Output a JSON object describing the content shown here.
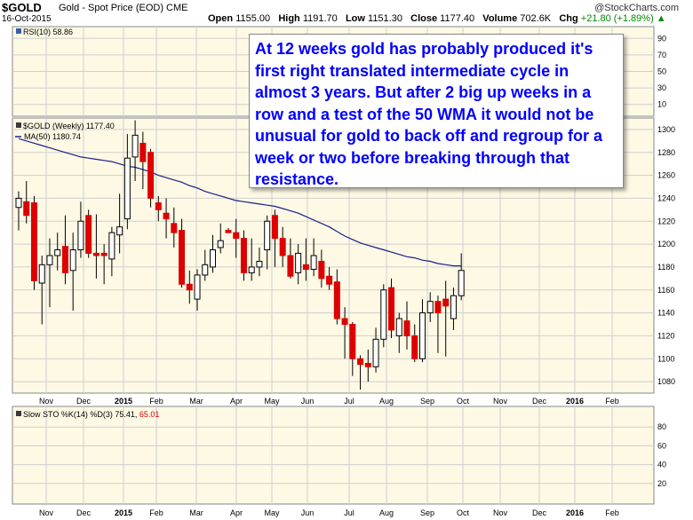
{
  "header": {
    "symbol": "$GOLD",
    "description": "Gold - Spot Price (EOD)  CME",
    "date": "16-Oct-2015",
    "open_label": "Open",
    "open": "1155.00",
    "high_label": "High",
    "high": "1191.70",
    "low_label": "Low",
    "low": "1151.30",
    "close_label": "Close",
    "close": "1177.40",
    "volume_label": "Volume",
    "volume": "702.6K",
    "chg_label": "Chg",
    "chg": "+21.80 (+1.89%)",
    "chg_arrow": "▲",
    "logo": "@StockCharts.com"
  },
  "annotation": "At 12 weeks gold has probably produced it's first right translated intermediate cycle in almost 3 years. But after 2 big up weeks in a row and a test of the 50 WMA it would not be unusual for gold to back off and regroup for a week or two before breaking through that resistance.",
  "colors": {
    "panel_bg": "#fdf9e4",
    "up": "#ffffff",
    "down": "#dd0000",
    "ma": "#1c1c8c",
    "grid": "#cfcfcf",
    "chg": "#008800"
  },
  "chart_data": [
    {
      "type": "line",
      "title": "RSI(10) 58.86",
      "ylim": [
        0,
        100
      ],
      "yticks": [
        10,
        30,
        50,
        70,
        90
      ]
    },
    {
      "type": "candlestick",
      "legend": [
        "$GOLD (Weekly) 1177.40",
        "MA(50) 1180.74"
      ],
      "ylim": [
        1070,
        1310
      ],
      "yticks": [
        1080,
        1100,
        1120,
        1140,
        1160,
        1180,
        1200,
        1220,
        1240,
        1260,
        1280,
        1300
      ],
      "x_months": [
        "Nov",
        "Dec",
        "2015",
        "Feb",
        "Mar",
        "Apr",
        "May",
        "Jun",
        "Jul",
        "Aug",
        "Sep",
        "Oct",
        "Nov",
        "Dec",
        "2016",
        "Feb"
      ],
      "bold_months": [
        "2015",
        "2016"
      ],
      "candles": [
        {
          "o": 1232,
          "h": 1246,
          "l": 1212,
          "c": 1240
        },
        {
          "o": 1237,
          "h": 1255,
          "l": 1218,
          "c": 1225
        },
        {
          "o": 1236,
          "h": 1242,
          "l": 1160,
          "c": 1168
        },
        {
          "o": 1166,
          "h": 1190,
          "l": 1130,
          "c": 1182
        },
        {
          "o": 1182,
          "h": 1205,
          "l": 1145,
          "c": 1190
        },
        {
          "o": 1190,
          "h": 1210,
          "l": 1177,
          "c": 1195
        },
        {
          "o": 1198,
          "h": 1225,
          "l": 1165,
          "c": 1175
        },
        {
          "o": 1177,
          "h": 1210,
          "l": 1142,
          "c": 1195
        },
        {
          "o": 1195,
          "h": 1237,
          "l": 1188,
          "c": 1220
        },
        {
          "o": 1225,
          "h": 1230,
          "l": 1188,
          "c": 1192
        },
        {
          "o": 1192,
          "h": 1226,
          "l": 1170,
          "c": 1190
        },
        {
          "o": 1192,
          "h": 1200,
          "l": 1165,
          "c": 1190
        },
        {
          "o": 1187,
          "h": 1215,
          "l": 1172,
          "c": 1210
        },
        {
          "o": 1208,
          "h": 1244,
          "l": 1192,
          "c": 1215
        },
        {
          "o": 1222,
          "h": 1296,
          "l": 1213,
          "c": 1275
        },
        {
          "o": 1276,
          "h": 1308,
          "l": 1255,
          "c": 1295
        },
        {
          "o": 1288,
          "h": 1298,
          "l": 1248,
          "c": 1272
        },
        {
          "o": 1280,
          "h": 1283,
          "l": 1232,
          "c": 1240
        },
        {
          "o": 1236,
          "h": 1242,
          "l": 1220,
          "c": 1230
        },
        {
          "o": 1227,
          "h": 1240,
          "l": 1205,
          "c": 1222
        },
        {
          "o": 1218,
          "h": 1232,
          "l": 1197,
          "c": 1210
        },
        {
          "o": 1212,
          "h": 1222,
          "l": 1162,
          "c": 1165
        },
        {
          "o": 1165,
          "h": 1177,
          "l": 1148,
          "c": 1160
        },
        {
          "o": 1152,
          "h": 1178,
          "l": 1142,
          "c": 1173
        },
        {
          "o": 1173,
          "h": 1195,
          "l": 1168,
          "c": 1182
        },
        {
          "o": 1180,
          "h": 1208,
          "l": 1175,
          "c": 1195
        },
        {
          "o": 1197,
          "h": 1218,
          "l": 1192,
          "c": 1203
        },
        {
          "o": 1212,
          "h": 1214,
          "l": 1210,
          "c": 1210
        },
        {
          "o": 1210,
          "h": 1222,
          "l": 1188,
          "c": 1205
        },
        {
          "o": 1205,
          "h": 1212,
          "l": 1168,
          "c": 1175
        },
        {
          "o": 1175,
          "h": 1205,
          "l": 1168,
          "c": 1180
        },
        {
          "o": 1180,
          "h": 1197,
          "l": 1172,
          "c": 1185
        },
        {
          "o": 1195,
          "h": 1225,
          "l": 1178,
          "c": 1220
        },
        {
          "o": 1225,
          "h": 1230,
          "l": 1180,
          "c": 1205
        },
        {
          "o": 1205,
          "h": 1215,
          "l": 1180,
          "c": 1190
        },
        {
          "o": 1190,
          "h": 1205,
          "l": 1170,
          "c": 1172
        },
        {
          "o": 1175,
          "h": 1200,
          "l": 1165,
          "c": 1192
        },
        {
          "o": 1182,
          "h": 1205,
          "l": 1168,
          "c": 1178
        },
        {
          "o": 1178,
          "h": 1205,
          "l": 1172,
          "c": 1190
        },
        {
          "o": 1185,
          "h": 1195,
          "l": 1162,
          "c": 1170
        },
        {
          "o": 1172,
          "h": 1180,
          "l": 1160,
          "c": 1165
        },
        {
          "o": 1167,
          "h": 1178,
          "l": 1130,
          "c": 1135
        },
        {
          "o": 1135,
          "h": 1145,
          "l": 1100,
          "c": 1130
        },
        {
          "o": 1130,
          "h": 1132,
          "l": 1085,
          "c": 1100
        },
        {
          "o": 1100,
          "h": 1103,
          "l": 1073,
          "c": 1095
        },
        {
          "o": 1096,
          "h": 1108,
          "l": 1080,
          "c": 1093
        },
        {
          "o": 1093,
          "h": 1127,
          "l": 1088,
          "c": 1117
        },
        {
          "o": 1117,
          "h": 1165,
          "l": 1110,
          "c": 1160
        },
        {
          "o": 1162,
          "h": 1170,
          "l": 1118,
          "c": 1125
        },
        {
          "o": 1120,
          "h": 1140,
          "l": 1105,
          "c": 1135
        },
        {
          "o": 1133,
          "h": 1150,
          "l": 1108,
          "c": 1120
        },
        {
          "o": 1120,
          "h": 1130,
          "l": 1097,
          "c": 1100
        },
        {
          "o": 1100,
          "h": 1152,
          "l": 1097,
          "c": 1140
        },
        {
          "o": 1140,
          "h": 1158,
          "l": 1132,
          "c": 1150
        },
        {
          "o": 1150,
          "h": 1155,
          "l": 1105,
          "c": 1140
        },
        {
          "o": 1152,
          "h": 1168,
          "l": 1102,
          "c": 1146
        },
        {
          "o": 1135,
          "h": 1162,
          "l": 1125,
          "c": 1155
        },
        {
          "o": 1155,
          "h": 1192,
          "l": 1151,
          "c": 1177
        }
      ],
      "ma50": [
        1292,
        1290,
        1288,
        1286,
        1284,
        1282,
        1280,
        1278,
        1276,
        1275,
        1274,
        1273,
        1272,
        1270,
        1268,
        1267,
        1265,
        1263,
        1260,
        1258,
        1256,
        1254,
        1251,
        1249,
        1246,
        1244,
        1242,
        1240,
        1238,
        1237,
        1236,
        1235,
        1234,
        1233,
        1231,
        1229,
        1227,
        1224,
        1221,
        1218,
        1215,
        1211,
        1207,
        1204,
        1201,
        1199,
        1197,
        1195,
        1193,
        1191,
        1189,
        1188,
        1186,
        1185,
        1183,
        1182,
        1181,
        1181
      ]
    },
    {
      "type": "line",
      "title": "Slow STO %K(14) %D(3)",
      "k_value": "75.41",
      "d_value": "65.01",
      "ylim": [
        0,
        100
      ],
      "yticks": [
        20,
        40,
        60,
        80
      ]
    }
  ]
}
